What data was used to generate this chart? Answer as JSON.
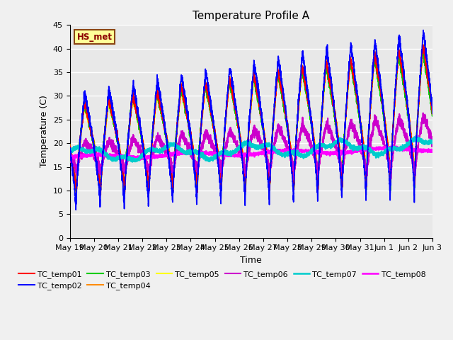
{
  "title": "Temperature Profile A",
  "xlabel": "Time",
  "ylabel": "Temperature (C)",
  "ylim": [
    0,
    45
  ],
  "yticks": [
    0,
    5,
    10,
    15,
    20,
    25,
    30,
    35,
    40,
    45
  ],
  "background_color": "#f0f0f0",
  "plot_bg_color": "#e8e8e8",
  "hs_label": "HS_met",
  "hs_label_color": "#8B0000",
  "hs_bg_color": "#FFFF99",
  "hs_border_color": "#8B4513",
  "series_colors": {
    "TC_temp01": "#FF0000",
    "TC_temp02": "#0000FF",
    "TC_temp03": "#00CC00",
    "TC_temp04": "#FF8C00",
    "TC_temp05": "#FFFF00",
    "TC_temp06": "#CC00CC",
    "TC_temp07": "#00CCCC",
    "TC_temp08": "#FF00FF"
  },
  "series_lw": {
    "TC_temp01": 1.2,
    "TC_temp02": 1.2,
    "TC_temp03": 1.2,
    "TC_temp04": 1.2,
    "TC_temp05": 1.2,
    "TC_temp06": 1.5,
    "TC_temp07": 1.8,
    "TC_temp08": 1.8
  },
  "n_days": 15,
  "date_labels": [
    "May 19",
    "May 20",
    "May 21",
    "May 22",
    "May 23",
    "May 24",
    "May 25",
    "May 26",
    "May 27",
    "May 28",
    "May 29",
    "May 30",
    "May 31",
    "Jun 1",
    "Jun 2",
    "Jun 3"
  ]
}
